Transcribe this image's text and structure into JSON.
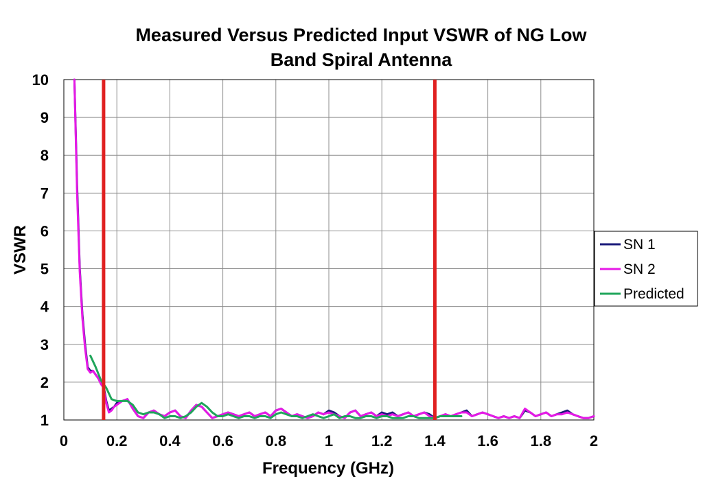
{
  "chart_data": {
    "type": "line",
    "title": [
      "Measured Versus Predicted Input VSWR of NG Low",
      "Band Spiral Antenna"
    ],
    "xlabel": "Frequency (GHz)",
    "ylabel": "VSWR",
    "xlim": [
      0,
      2
    ],
    "ylim": [
      1,
      10
    ],
    "xticks": [
      0,
      0.2,
      0.4,
      0.6,
      0.8,
      1,
      1.2,
      1.4,
      1.6,
      1.8,
      2
    ],
    "xtick_labels": [
      "0",
      "0.2",
      "0.4",
      "0.6",
      "0.8",
      "1",
      "1.2",
      "1.4",
      "1.6",
      "1.8",
      "2"
    ],
    "yticks": [
      1,
      2,
      3,
      4,
      5,
      6,
      7,
      8,
      9,
      10
    ],
    "ytick_labels": [
      "1",
      "2",
      "3",
      "4",
      "5",
      "6",
      "7",
      "8",
      "9",
      "10"
    ],
    "grid": true,
    "legend_position": "right",
    "vertical_markers": [
      {
        "x": 0.15,
        "color": "#e02020"
      },
      {
        "x": 1.4,
        "color": "#e02020"
      }
    ],
    "series": [
      {
        "name": "SN 1",
        "color": "#1a1a7a",
        "x": [
          0.04,
          0.05,
          0.06,
          0.07,
          0.08,
          0.09,
          0.1,
          0.11,
          0.12,
          0.13,
          0.14,
          0.15,
          0.16,
          0.17,
          0.18,
          0.19,
          0.2,
          0.22,
          0.24,
          0.26,
          0.28,
          0.3,
          0.32,
          0.34,
          0.36,
          0.38,
          0.4,
          0.42,
          0.44,
          0.46,
          0.48,
          0.5,
          0.52,
          0.54,
          0.56,
          0.58,
          0.6,
          0.62,
          0.64,
          0.66,
          0.68,
          0.7,
          0.72,
          0.74,
          0.76,
          0.78,
          0.8,
          0.82,
          0.84,
          0.86,
          0.88,
          0.9,
          0.92,
          0.94,
          0.96,
          0.98,
          1.0,
          1.02,
          1.04,
          1.06,
          1.08,
          1.1,
          1.12,
          1.14,
          1.16,
          1.18,
          1.2,
          1.22,
          1.24,
          1.26,
          1.28,
          1.3,
          1.32,
          1.34,
          1.36,
          1.38,
          1.4,
          1.42,
          1.44,
          1.46,
          1.48,
          1.5,
          1.52,
          1.54,
          1.56,
          1.58,
          1.6,
          1.62,
          1.64,
          1.66,
          1.68,
          1.7,
          1.72,
          1.74,
          1.76,
          1.78,
          1.8,
          1.82,
          1.84,
          1.86,
          1.88,
          1.9,
          1.92,
          1.94,
          1.96,
          1.98,
          2.0
        ],
        "y": [
          10,
          7.2,
          5.0,
          3.8,
          3.0,
          2.4,
          2.3,
          2.3,
          2.2,
          2.1,
          2.0,
          1.9,
          1.5,
          1.25,
          1.3,
          1.35,
          1.45,
          1.5,
          1.55,
          1.3,
          1.1,
          1.05,
          1.2,
          1.25,
          1.15,
          1.1,
          1.2,
          1.25,
          1.1,
          1.05,
          1.25,
          1.4,
          1.35,
          1.2,
          1.05,
          1.1,
          1.15,
          1.2,
          1.15,
          1.1,
          1.15,
          1.2,
          1.1,
          1.15,
          1.2,
          1.1,
          1.25,
          1.3,
          1.2,
          1.1,
          1.15,
          1.1,
          1.05,
          1.1,
          1.2,
          1.15,
          1.25,
          1.2,
          1.1,
          1.05,
          1.2,
          1.25,
          1.1,
          1.15,
          1.2,
          1.1,
          1.2,
          1.15,
          1.2,
          1.1,
          1.15,
          1.2,
          1.1,
          1.15,
          1.2,
          1.15,
          1.05,
          1.1,
          1.15,
          1.1,
          1.15,
          1.2,
          1.25,
          1.1,
          1.15,
          1.2,
          1.15,
          1.1,
          1.05,
          1.1,
          1.05,
          1.1,
          1.05,
          1.25,
          1.2,
          1.1,
          1.15,
          1.2,
          1.1,
          1.15,
          1.2,
          1.25,
          1.15,
          1.1,
          1.05,
          1.05,
          1.1
        ]
      },
      {
        "name": "SN 2",
        "color": "#e619e6",
        "x": [
          0.04,
          0.05,
          0.06,
          0.07,
          0.08,
          0.09,
          0.1,
          0.11,
          0.12,
          0.13,
          0.14,
          0.15,
          0.16,
          0.17,
          0.18,
          0.19,
          0.2,
          0.22,
          0.24,
          0.26,
          0.28,
          0.3,
          0.32,
          0.34,
          0.36,
          0.38,
          0.4,
          0.42,
          0.44,
          0.46,
          0.48,
          0.5,
          0.52,
          0.54,
          0.56,
          0.58,
          0.6,
          0.62,
          0.64,
          0.66,
          0.68,
          0.7,
          0.72,
          0.74,
          0.76,
          0.78,
          0.8,
          0.82,
          0.84,
          0.86,
          0.88,
          0.9,
          0.92,
          0.94,
          0.96,
          0.98,
          1.0,
          1.02,
          1.04,
          1.06,
          1.08,
          1.1,
          1.12,
          1.14,
          1.16,
          1.18,
          1.2,
          1.22,
          1.24,
          1.26,
          1.28,
          1.3,
          1.32,
          1.34,
          1.36,
          1.38,
          1.4,
          1.42,
          1.44,
          1.46,
          1.48,
          1.5,
          1.52,
          1.54,
          1.56,
          1.58,
          1.6,
          1.62,
          1.64,
          1.66,
          1.68,
          1.7,
          1.72,
          1.74,
          1.76,
          1.78,
          1.8,
          1.82,
          1.84,
          1.86,
          1.88,
          1.9,
          1.92,
          1.94,
          1.96,
          1.98,
          2.0
        ],
        "y": [
          10,
          7.0,
          4.9,
          3.7,
          2.9,
          2.35,
          2.25,
          2.3,
          2.2,
          2.1,
          1.95,
          1.85,
          1.45,
          1.2,
          1.25,
          1.35,
          1.4,
          1.5,
          1.55,
          1.3,
          1.1,
          1.05,
          1.2,
          1.25,
          1.15,
          1.1,
          1.2,
          1.25,
          1.1,
          1.05,
          1.25,
          1.4,
          1.35,
          1.2,
          1.05,
          1.1,
          1.15,
          1.2,
          1.15,
          1.1,
          1.15,
          1.2,
          1.1,
          1.15,
          1.2,
          1.1,
          1.25,
          1.3,
          1.2,
          1.1,
          1.15,
          1.1,
          1.05,
          1.1,
          1.2,
          1.15,
          1.2,
          1.15,
          1.1,
          1.05,
          1.2,
          1.25,
          1.1,
          1.15,
          1.2,
          1.1,
          1.15,
          1.1,
          1.15,
          1.1,
          1.15,
          1.2,
          1.1,
          1.15,
          1.2,
          1.1,
          1.05,
          1.1,
          1.15,
          1.1,
          1.15,
          1.2,
          1.2,
          1.1,
          1.15,
          1.2,
          1.15,
          1.1,
          1.05,
          1.1,
          1.05,
          1.1,
          1.05,
          1.3,
          1.2,
          1.1,
          1.15,
          1.2,
          1.1,
          1.15,
          1.15,
          1.2,
          1.15,
          1.1,
          1.05,
          1.05,
          1.1
        ]
      },
      {
        "name": "Predicted",
        "color": "#1fa55a",
        "x": [
          0.1,
          0.12,
          0.14,
          0.15,
          0.16,
          0.18,
          0.2,
          0.22,
          0.24,
          0.26,
          0.28,
          0.3,
          0.32,
          0.34,
          0.36,
          0.38,
          0.4,
          0.42,
          0.44,
          0.46,
          0.48,
          0.5,
          0.52,
          0.54,
          0.56,
          0.58,
          0.6,
          0.62,
          0.64,
          0.66,
          0.68,
          0.7,
          0.72,
          0.74,
          0.76,
          0.78,
          0.8,
          0.82,
          0.84,
          0.86,
          0.88,
          0.9,
          0.92,
          0.94,
          0.96,
          0.98,
          1.0,
          1.02,
          1.04,
          1.06,
          1.08,
          1.1,
          1.12,
          1.14,
          1.16,
          1.18,
          1.2,
          1.22,
          1.24,
          1.26,
          1.28,
          1.3,
          1.32,
          1.34,
          1.36,
          1.38,
          1.4,
          1.42,
          1.44,
          1.46,
          1.48,
          1.5
        ],
        "y": [
          2.7,
          2.4,
          2.05,
          1.95,
          1.85,
          1.55,
          1.5,
          1.5,
          1.5,
          1.4,
          1.2,
          1.15,
          1.2,
          1.2,
          1.15,
          1.05,
          1.1,
          1.1,
          1.05,
          1.1,
          1.2,
          1.35,
          1.45,
          1.35,
          1.2,
          1.1,
          1.1,
          1.15,
          1.1,
          1.05,
          1.1,
          1.1,
          1.05,
          1.1,
          1.1,
          1.05,
          1.15,
          1.2,
          1.15,
          1.1,
          1.1,
          1.05,
          1.1,
          1.15,
          1.1,
          1.05,
          1.1,
          1.15,
          1.05,
          1.1,
          1.1,
          1.05,
          1.05,
          1.1,
          1.1,
          1.05,
          1.1,
          1.1,
          1.05,
          1.05,
          1.05,
          1.1,
          1.1,
          1.05,
          1.05,
          1.05,
          1.05,
          1.1,
          1.1,
          1.1,
          1.1,
          1.1
        ]
      }
    ]
  }
}
